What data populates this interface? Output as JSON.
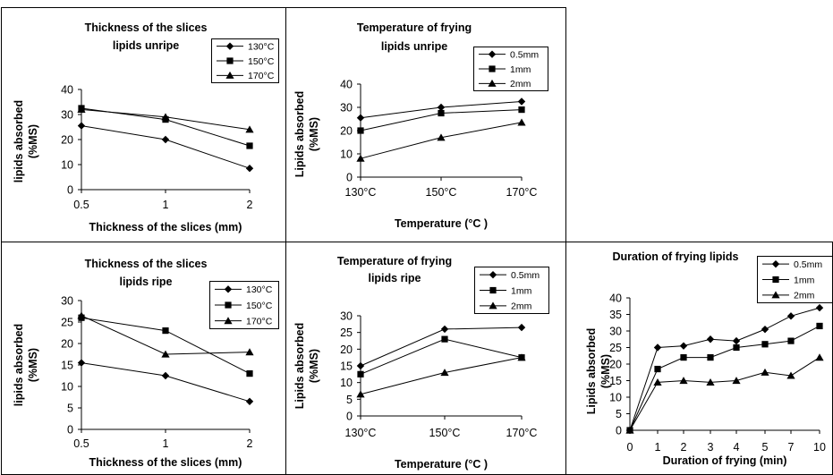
{
  "chart_data": [
    {
      "type": "line",
      "title": [
        "Thickness of the slices",
        "lipids unripe"
      ],
      "xlabel": "Thickness of the slices (mm)",
      "ylabel": [
        "lipids absorbed",
        "(%MS)"
      ],
      "categories": [
        "0.5",
        "1",
        "2"
      ],
      "ylim": [
        0,
        40
      ],
      "yticks": [
        "0",
        "10",
        "20",
        "30",
        "40"
      ],
      "legend_position": "top-right",
      "series": [
        {
          "name": "130°C",
          "marker": "diamond",
          "values": [
            25.5,
            20,
            8.5
          ]
        },
        {
          "name": "150°C",
          "marker": "square",
          "values": [
            32.5,
            28,
            17.5
          ]
        },
        {
          "name": "170°C",
          "marker": "triangle",
          "values": [
            32,
            29,
            24
          ]
        }
      ]
    },
    {
      "type": "line",
      "title": [
        "Temperature of frying",
        "lipids unripe"
      ],
      "xlabel": "Temperature (°C )",
      "ylabel": [
        "Lipids absorbed",
        "(%MS)"
      ],
      "categories": [
        "130°C",
        "150°C",
        "170°C"
      ],
      "ylim": [
        0,
        40
      ],
      "yticks": [
        "0",
        "10",
        "20",
        "30",
        "40"
      ],
      "legend_position": "top-right",
      "series": [
        {
          "name": "0.5mm",
          "marker": "diamond",
          "values": [
            25.5,
            30,
            32.5
          ]
        },
        {
          "name": "1mm",
          "marker": "square",
          "values": [
            20,
            27.5,
            29
          ]
        },
        {
          "name": "2mm",
          "marker": "triangle",
          "values": [
            8,
            17,
            23.5
          ]
        }
      ]
    },
    {
      "type": "line",
      "title": [
        "Thickness of the slices",
        "lipids ripe"
      ],
      "xlabel": "Thickness of the slices (mm)",
      "ylabel": [
        "lipids absorbed",
        "(%MS)"
      ],
      "categories": [
        "0.5",
        "1",
        "2"
      ],
      "ylim": [
        0,
        30
      ],
      "yticks": [
        "0",
        "5",
        "10",
        "15",
        "20",
        "25",
        "30"
      ],
      "legend_position": "top-right",
      "series": [
        {
          "name": "130°C",
          "marker": "diamond",
          "values": [
            15.5,
            12.5,
            6.5
          ]
        },
        {
          "name": "150°C",
          "marker": "square",
          "values": [
            26,
            23,
            13
          ]
        },
        {
          "name": "170°C",
          "marker": "triangle",
          "values": [
            26.5,
            17.5,
            18
          ]
        }
      ]
    },
    {
      "type": "line",
      "title": [
        "Temperature of frying",
        "lipids ripe"
      ],
      "xlabel": "Temperature (°C )",
      "ylabel": [
        "Lipids absorbed",
        "(%MS)"
      ],
      "categories": [
        "130°C",
        "150°C",
        "170°C"
      ],
      "ylim": [
        0,
        30
      ],
      "yticks": [
        "0",
        "5",
        "10",
        "15",
        "20",
        "25",
        "30"
      ],
      "legend_position": "top-right",
      "series": [
        {
          "name": "0.5mm",
          "marker": "diamond",
          "values": [
            15,
            26,
            26.5
          ]
        },
        {
          "name": "1mm",
          "marker": "square",
          "values": [
            12.5,
            23,
            17.5
          ]
        },
        {
          "name": "2mm",
          "marker": "triangle",
          "values": [
            6.5,
            13,
            17.5
          ]
        }
      ]
    },
    {
      "type": "line",
      "title": [
        "Duration of frying lipids"
      ],
      "xlabel": "Duration of frying (min)",
      "ylabel": [
        "Lipids absorbed",
        "(%MS)"
      ],
      "categories": [
        "0",
        "1",
        "2",
        "3",
        "4",
        "5",
        "7",
        "10"
      ],
      "ylim": [
        0,
        40
      ],
      "yticks": [
        "0",
        "5",
        "10",
        "15",
        "20",
        "25",
        "30",
        "35",
        "40"
      ],
      "legend_position": "top-right",
      "series": [
        {
          "name": "0.5mm",
          "marker": "diamond",
          "values": [
            0,
            25,
            25.5,
            27.5,
            27,
            30.5,
            34.5,
            37
          ]
        },
        {
          "name": "1mm",
          "marker": "square",
          "values": [
            0,
            18.5,
            22,
            22,
            25,
            26,
            27,
            31.5
          ]
        },
        {
          "name": "2mm",
          "marker": "triangle",
          "values": [
            0,
            14.5,
            15,
            14.5,
            15,
            17.5,
            16.5,
            22
          ]
        }
      ]
    }
  ]
}
